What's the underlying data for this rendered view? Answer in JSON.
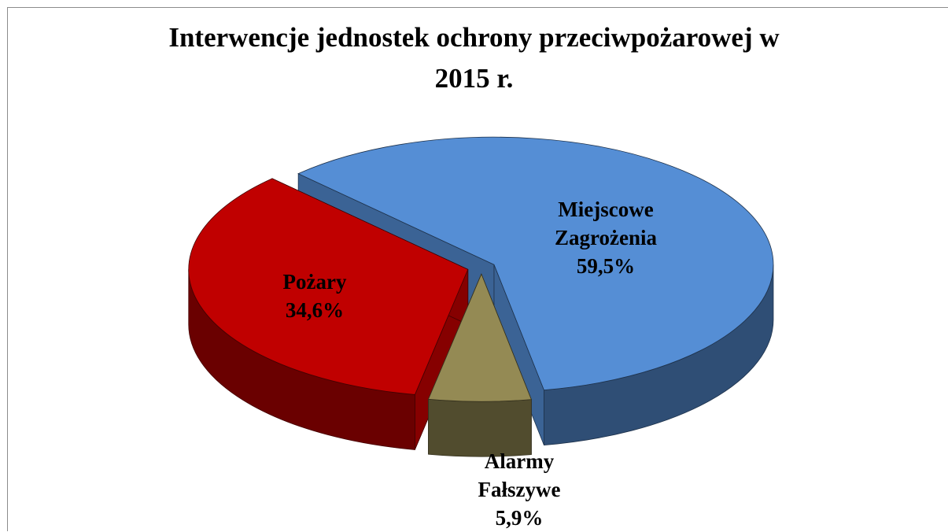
{
  "chart_data": {
    "type": "pie",
    "title": "Interwencje jednostek ochrony przeciwpożarowej w 2015 r.",
    "categories": [
      "Miejscowe Zagrożenia",
      "Alarmy Fałszywe",
      "Pożary"
    ],
    "values": [
      59.5,
      5.9,
      34.6
    ],
    "value_labels": [
      "59,5%",
      "5,9%",
      "34,6%"
    ],
    "colors": [
      "#558ed5",
      "#948a54",
      "#c00000"
    ]
  }
}
